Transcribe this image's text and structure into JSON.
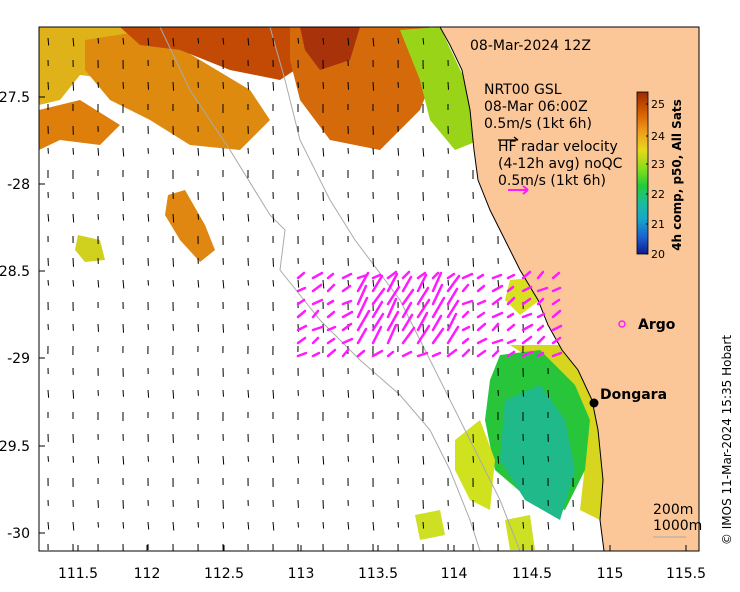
{
  "map": {
    "date_label": "08-Mar-2024 12Z",
    "wind_title": "NRT00 GSL",
    "wind_time": "08-Mar 06:00Z",
    "wind_scale": "0.5m/s (1kt 6h)",
    "radar_title_1": "HF radar velocity",
    "radar_title_2": "(4-12h avg) noQC",
    "radar_scale": "0.5m/s (1kt 6h)",
    "colorbar_title": "4h comp, p50, All Sats",
    "colorbar_ticks": [
      "25",
      "24",
      "23",
      "22",
      "21",
      "20"
    ],
    "colorbar_colors": [
      "#9b2a00",
      "#d45a00",
      "#ef9a1a",
      "#e8d81a",
      "#7fdd1a",
      "#22cc3a",
      "#1bbd9a",
      "#17a8c8",
      "#1a5fd0",
      "#101a90"
    ],
    "x_ticks": [
      "111.5",
      "112",
      "112.5",
      "113",
      "113.5",
      "114",
      "114.5",
      "115",
      "115.5"
    ],
    "y_ticks": [
      "-27.5",
      "-28",
      "-28.5",
      "-29",
      "-29.5",
      "-30"
    ],
    "places": [
      {
        "name": "Dongara",
        "kind": "town"
      },
      {
        "name": "Argo",
        "kind": "float"
      }
    ],
    "isobath_labels": [
      "200m",
      "1000m"
    ],
    "credit": "© IMOS 11-Mar-2024 15:35 Hobart",
    "land_color": "#fbc799",
    "radar_color": "#ff1aff"
  }
}
